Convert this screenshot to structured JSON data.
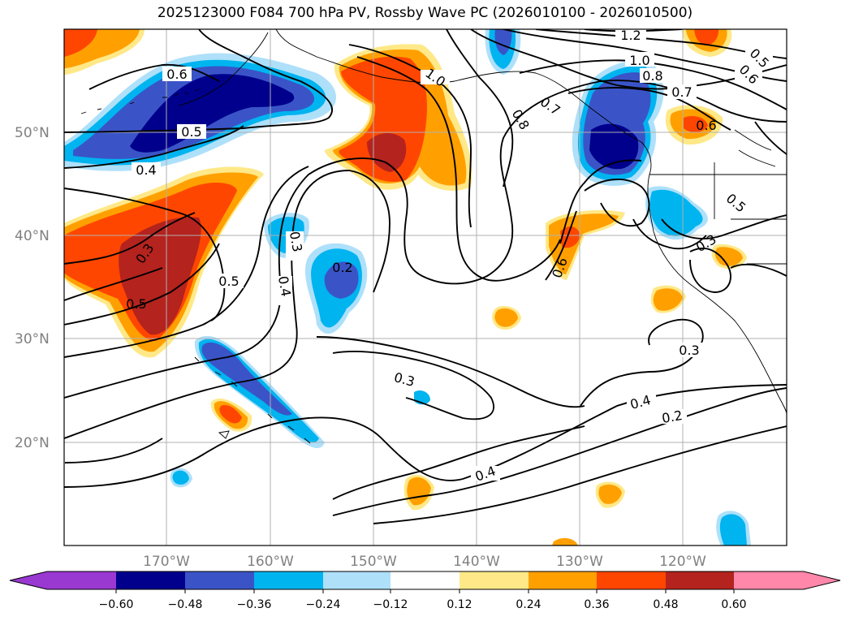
{
  "title": "2025123000 F084 700 hPa PV, Rossby Wave PC (2026010100 - 2026010500)",
  "map": {
    "lat_labels": [
      "50°N",
      "40°N",
      "30°N",
      "20°N"
    ],
    "lon_labels": [
      "170°W",
      "160°W",
      "150°W",
      "140°W",
      "130°W",
      "120°W"
    ],
    "label_color": "#808080",
    "grid_color": "#b0b0b0",
    "contour_labels": [
      "1.2",
      "1.0",
      "0.8",
      "0.7",
      "0.6",
      "0.5",
      "0.6",
      "0.6",
      "0.5",
      "0.4",
      "0.8",
      "0.7",
      "0.6",
      "0.5",
      "0.3",
      "0.3",
      "0.2",
      "0.3",
      "0.4",
      "0.5",
      "0.3",
      "0.3",
      "0.5",
      "0.4",
      "0.2",
      "0.4",
      "1.0"
    ]
  },
  "colorbar": {
    "tick_labels": [
      "−0.60",
      "−0.48",
      "−0.36",
      "−0.24",
      "−0.12",
      "0.12",
      "0.24",
      "0.36",
      "0.48",
      "0.60"
    ],
    "colors": [
      "#9a38d2",
      "#00008c",
      "#3a54c8",
      "#00b4f0",
      "#aee0fa",
      "#ffffff",
      "#ffe887",
      "#ffa000",
      "#ff4600",
      "#b4231e",
      "#ff87aa"
    ]
  },
  "palette": {
    "dark_blue": "#00008c",
    "blue": "#3a54c8",
    "cyan": "#00b4f0",
    "light_blue": "#aee0fa",
    "light_yellow": "#ffe887",
    "orange": "#ffa000",
    "red_orange": "#ff4600",
    "dark_red": "#b4231e",
    "pink": "#ff87aa"
  }
}
